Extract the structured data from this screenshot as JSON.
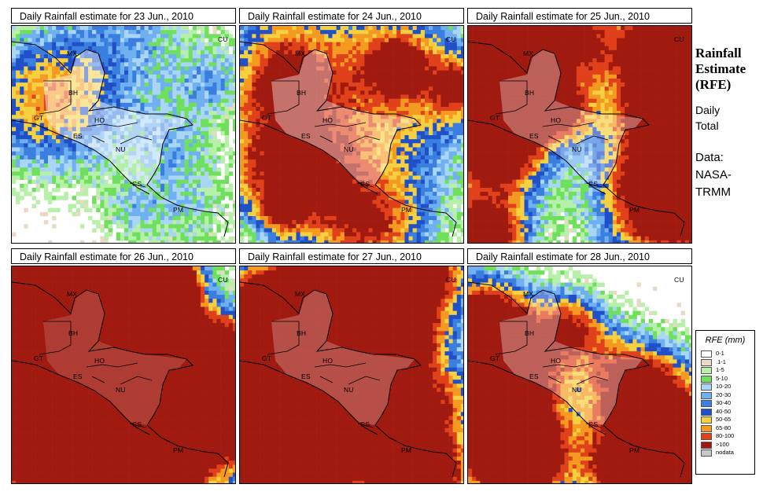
{
  "panels": [
    {
      "title": "Daily Rainfall estimate for  23 Jun., 2010",
      "intensity": 1
    },
    {
      "title": "Daily Rainfall estimate for  24 Jun., 2010",
      "intensity": 2
    },
    {
      "title": "Daily Rainfall estimate for  25 Jun., 2010",
      "intensity": 3
    },
    {
      "title": "Daily Rainfall estimate for  26 Jun., 2010",
      "intensity": 5
    },
    {
      "title": "Daily Rainfall estimate for  27 Jun., 2010",
      "intensity": 4
    },
    {
      "title": "Daily Rainfall estimate for  28 Jun., 2010",
      "intensity": 3
    }
  ],
  "map_labels": [
    "MX",
    "CU",
    "BH",
    "GT",
    "HO",
    "ES",
    "NU",
    "CS",
    "PM"
  ],
  "side": {
    "title_line1": "Rainfall",
    "title_line2": "Estimate",
    "title_line3": "(RFE)",
    "daily": "Daily",
    "total": "Total",
    "data_label": "Data:",
    "source_line1": "NASA-",
    "source_line2": "TRMM"
  },
  "legend": {
    "title": "RFE (mm)",
    "items": [
      {
        "label": "0-1",
        "color": "#ffffff"
      },
      {
        "label": ".1-1",
        "color": "#ead9c4"
      },
      {
        "label": "1-5",
        "color": "#b7f0a8"
      },
      {
        "label": "5-10",
        "color": "#6fe05c"
      },
      {
        "label": "10-20",
        "color": "#a9d6f5"
      },
      {
        "label": "20-30",
        "color": "#6fb0f0"
      },
      {
        "label": "30-40",
        "color": "#3a7fe0"
      },
      {
        "label": "40-50",
        "color": "#2050c8"
      },
      {
        "label": "50-65",
        "color": "#f5d040"
      },
      {
        "label": "65-80",
        "color": "#f59a20"
      },
      {
        "label": "80-100",
        "color": "#e0401a"
      },
      {
        "label": ">100",
        "color": "#a01a10"
      },
      {
        "label": "nodata",
        "color": "#c8c8c8"
      }
    ]
  }
}
